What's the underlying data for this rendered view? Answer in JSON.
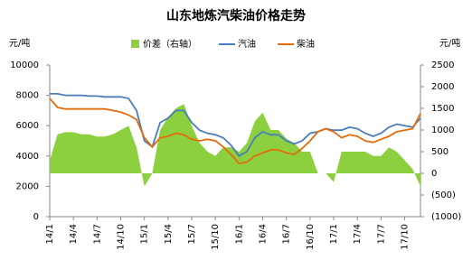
{
  "chart_data": {
    "type": "combo",
    "title": "山东地炼汽柴油价格走势",
    "y_label": "元/吨",
    "y2_label": "元/吨",
    "categories": [
      "14/1",
      null,
      null,
      "14/4",
      null,
      null,
      "14/7",
      null,
      null,
      "14/10",
      null,
      null,
      "15/1",
      null,
      null,
      "15/4",
      null,
      null,
      "15/7",
      null,
      null,
      "15/10",
      null,
      null,
      "16/1",
      null,
      null,
      "16/4",
      null,
      null,
      "16/7",
      null,
      null,
      "16/10",
      null,
      null,
      "17/1",
      null,
      null,
      "17/4",
      null,
      null,
      "17/7",
      null,
      null,
      "17/10",
      null,
      null
    ],
    "series": [
      {
        "name": "价差（右轴）",
        "kind": "area",
        "axis": "y2",
        "color": "#8ccf3f",
        "values": [
          300,
          900,
          950,
          950,
          900,
          900,
          850,
          850,
          900,
          1000,
          1100,
          600,
          -300,
          0,
          1000,
          1300,
          1500,
          1600,
          1100,
          700,
          500,
          400,
          600,
          600,
          500,
          700,
          1200,
          1400,
          1000,
          1000,
          800,
          700,
          500,
          500,
          0,
          0,
          -200,
          500,
          500,
          500,
          500,
          400,
          400,
          600,
          500,
          300,
          100,
          -300
        ]
      },
      {
        "name": "汽油",
        "kind": "line",
        "color": "#4a7ebb",
        "values": [
          8100,
          8100,
          8000,
          8000,
          8000,
          7950,
          7950,
          7900,
          7900,
          7900,
          7800,
          7000,
          5000,
          4600,
          6200,
          6500,
          7000,
          7000,
          6200,
          5700,
          5500,
          5400,
          5200,
          4700,
          4000,
          4300,
          5200,
          5600,
          5400,
          5400,
          5000,
          4800,
          5000,
          5500,
          5600,
          5800,
          5700,
          5700,
          5900,
          5800,
          5500,
          5300,
          5500,
          5900,
          6100,
          6000,
          5900,
          6500
        ]
      },
      {
        "name": "柴油",
        "kind": "line",
        "color": "#e46c0a",
        "values": [
          7800,
          7200,
          7100,
          7100,
          7100,
          7100,
          7100,
          7100,
          7000,
          6900,
          6700,
          6400,
          5200,
          4600,
          5200,
          5300,
          5500,
          5400,
          5100,
          5000,
          5100,
          5000,
          4600,
          4100,
          3500,
          3600,
          4000,
          4200,
          4400,
          4400,
          4200,
          4100,
          4500,
          5000,
          5600,
          5800,
          5600,
          5200,
          5400,
          5300,
          5000,
          4900,
          5100,
          5300,
          5600,
          5700,
          5800,
          6800
        ]
      }
    ],
    "ylim": [
      0,
      10000
    ],
    "yticks": [
      0,
      2000,
      4000,
      6000,
      8000,
      10000
    ],
    "y2lim": [
      -1000,
      2500
    ],
    "y2ticks": [
      {
        "value": -1000,
        "label": "(1000)"
      },
      {
        "value": -500,
        "label": "(500)"
      },
      0,
      500,
      1000,
      1500,
      2000,
      2500
    ],
    "negative_tick_color": "#ff0000",
    "legend": "top"
  }
}
